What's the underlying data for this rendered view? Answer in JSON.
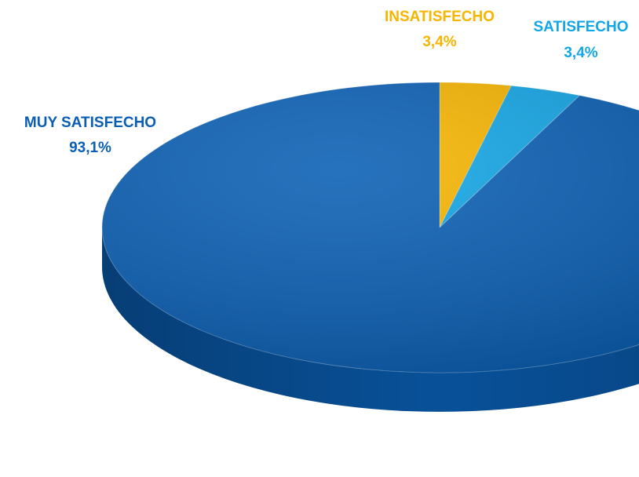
{
  "chart_data": {
    "type": "pie",
    "categories": [
      "INSATISFECHO",
      "SATISFECHO",
      "MUY SATISFECHO"
    ],
    "values": [
      3.4,
      3.4,
      93.1
    ],
    "value_labels": [
      "3,4%",
      "3,4%",
      "93,1%"
    ],
    "colors": [
      "#f7b500",
      "#12a6e6",
      "#0a5fb4"
    ]
  }
}
